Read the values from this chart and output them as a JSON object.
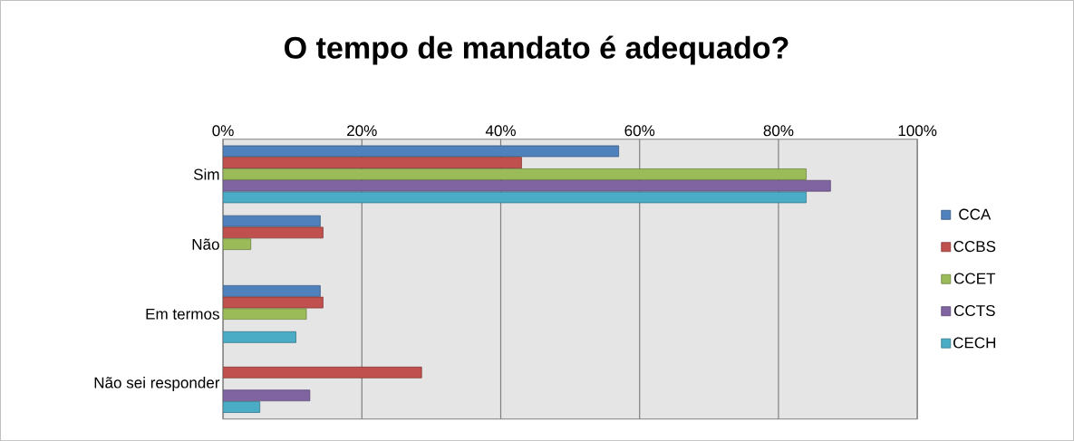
{
  "chart_data": {
    "type": "bar",
    "orientation": "horizontal",
    "title": "O tempo de mandato é adequado?",
    "categories": [
      "Sim",
      "Não",
      "Em termos",
      "Não sei responder"
    ],
    "series": [
      {
        "name": "CCA",
        "color": "#4f81bd",
        "values": [
          57,
          14,
          14,
          null
        ]
      },
      {
        "name": "CCBS",
        "color": "#c0504d",
        "values": [
          43,
          14.4,
          14.4,
          28.6
        ]
      },
      {
        "name": "CCET",
        "color": "#9bbb59",
        "values": [
          84,
          4,
          12,
          null
        ]
      },
      {
        "name": "CCTS",
        "color": "#8064a2",
        "values": [
          87.5,
          null,
          null,
          12.5
        ]
      },
      {
        "name": "CECH",
        "color": "#4bacc6",
        "values": [
          84,
          null,
          10.5,
          5.3
        ]
      }
    ],
    "xlim": [
      0,
      100
    ],
    "xticks": [
      {
        "value": 0,
        "label": "0%"
      },
      {
        "value": 20,
        "label": "20%"
      },
      {
        "value": 40,
        "label": "40%"
      },
      {
        "value": 60,
        "label": "60%"
      },
      {
        "value": 80,
        "label": "80%"
      },
      {
        "value": 100,
        "label": "100%"
      }
    ],
    "grid": "x",
    "legend": "right"
  }
}
